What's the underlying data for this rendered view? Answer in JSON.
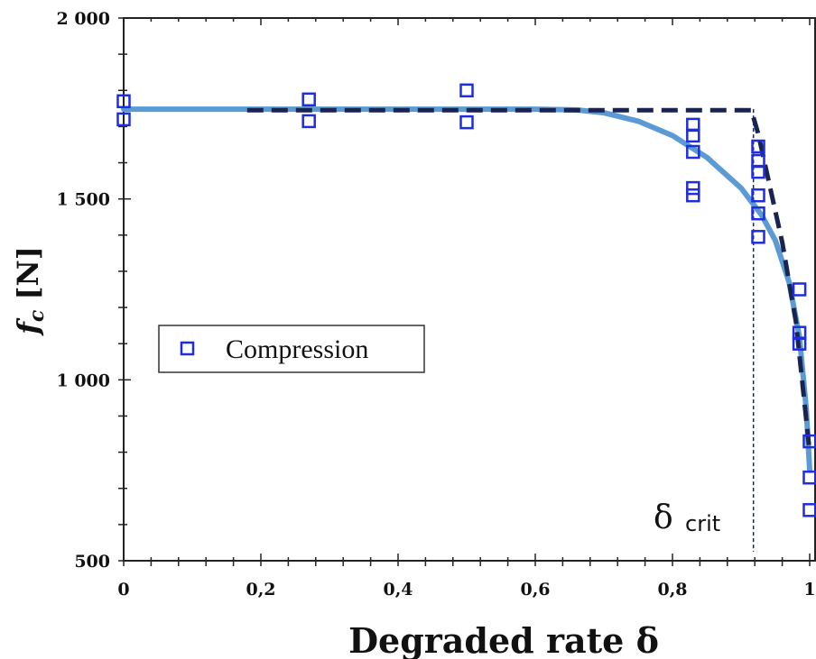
{
  "chart_data": {
    "type": "scatter",
    "title": "",
    "xlabel": "Degraded rate δ",
    "ylabel_symbol": "f",
    "ylabel_subscript": "c",
    "ylabel_unit": " [N]",
    "xlim": [
      0,
      1
    ],
    "ylim": [
      500,
      2000
    ],
    "x_ticks": [
      0,
      0.2,
      0.4,
      0.6,
      0.8,
      1
    ],
    "x_tick_labels": [
      "0",
      "0,2",
      "0,4",
      "0,6",
      "0,8",
      "1"
    ],
    "y_ticks": [
      500,
      1000,
      1500,
      2000
    ],
    "y_tick_labels": [
      "500",
      "1 000",
      "1 500",
      "2 000"
    ],
    "grid": false,
    "legend_position": "middle-left",
    "series": [
      {
        "name": "Compression",
        "marker": "hollow-square",
        "color": "#1f2de0",
        "points": [
          [
            0.0,
            1770
          ],
          [
            0.0,
            1720
          ],
          [
            0.27,
            1775
          ],
          [
            0.27,
            1715
          ],
          [
            0.5,
            1800
          ],
          [
            0.5,
            1712
          ],
          [
            0.83,
            1705
          ],
          [
            0.83,
            1675
          ],
          [
            0.83,
            1630
          ],
          [
            0.83,
            1530
          ],
          [
            0.83,
            1510
          ],
          [
            0.925,
            1645
          ],
          [
            0.925,
            1605
          ],
          [
            0.925,
            1575
          ],
          [
            0.925,
            1510
          ],
          [
            0.925,
            1460
          ],
          [
            0.925,
            1395
          ],
          [
            0.985,
            1250
          ],
          [
            0.985,
            1130
          ],
          [
            0.985,
            1100
          ],
          [
            1.0,
            830
          ],
          [
            1.0,
            730
          ],
          [
            1.0,
            640
          ]
        ]
      }
    ],
    "curves": [
      {
        "style": "solid",
        "color": "#5b9bd5",
        "points": [
          [
            0.0,
            1748
          ],
          [
            0.3,
            1748
          ],
          [
            0.6,
            1748
          ],
          [
            0.66,
            1746
          ],
          [
            0.7,
            1738
          ],
          [
            0.75,
            1715
          ],
          [
            0.8,
            1675
          ],
          [
            0.85,
            1615
          ],
          [
            0.9,
            1530
          ],
          [
            0.93,
            1455
          ],
          [
            0.95,
            1385
          ],
          [
            0.97,
            1270
          ],
          [
            0.985,
            1120
          ],
          [
            0.995,
            920
          ],
          [
            1.0,
            750
          ]
        ]
      },
      {
        "style": "dashed",
        "color": "#1a2450",
        "points": [
          [
            0.18,
            1745
          ],
          [
            0.915,
            1745
          ],
          [
            0.925,
            1680
          ],
          [
            0.96,
            1380
          ],
          [
            0.98,
            1160
          ],
          [
            1.0,
            800
          ]
        ]
      }
    ],
    "critical_line": {
      "x": 0.918,
      "style": "dotted"
    },
    "annotation": {
      "main": "δ",
      "sub": "crit"
    }
  }
}
